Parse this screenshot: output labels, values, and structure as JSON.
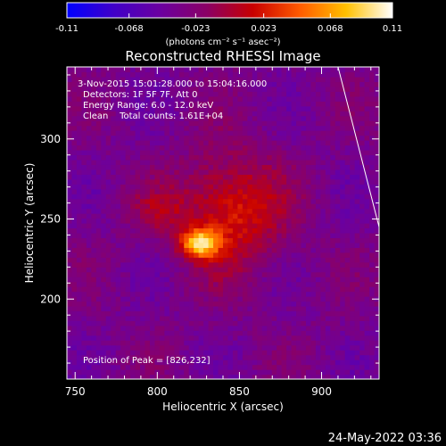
{
  "colorbar": {
    "ticks": [
      "-0.11",
      "-0.068",
      "-0.023",
      "0.023",
      "0.068",
      "0.11"
    ],
    "units": "(photons cm⁻² s⁻¹ asec⁻²)",
    "gradient": [
      "#0000ff",
      "#4000c8",
      "#6b00a0",
      "#8a0066",
      "#c80000",
      "#ff5a00",
      "#ffc000",
      "#ffffff"
    ]
  },
  "plot": {
    "title": "Reconstructed RHESSI Image",
    "info": [
      "3-Nov-2015 15:01:28.000 to 15:04:16.000",
      "Detectors: 1F 5F 7F, Att 0",
      "Energy Range: 6.0 - 12.0 keV",
      "Clean    Total counts: 1.61E+04"
    ],
    "peak_text": "Position of Peak = [826,232]",
    "xlabel": "Heliocentric X (arcsec)",
    "ylabel": "Heliocentric Y (arcsec)"
  },
  "timestamp": "24-May-2022 03:36",
  "chart_data": {
    "type": "heatmap",
    "title": "Reconstructed RHESSI Image",
    "xlabel": "Heliocentric X (arcsec)",
    "ylabel": "Heliocentric Y (arcsec)",
    "xlim": [
      745,
      935
    ],
    "ylim": [
      150,
      345
    ],
    "x_ticks": [
      750,
      800,
      850,
      900
    ],
    "y_ticks": [
      200,
      250,
      300
    ],
    "colorbar_range": [
      -0.11,
      0.11
    ],
    "colorbar_ticks": [
      -0.11,
      -0.068,
      -0.023,
      0.023,
      0.068,
      0.11
    ],
    "peak": {
      "x": 826,
      "y": 232,
      "value": 0.11
    },
    "sources": [
      {
        "x": 826,
        "y": 235,
        "sx": 8,
        "sy": 6,
        "value": 0.11
      },
      {
        "x": 845,
        "y": 255,
        "sx": 22,
        "sy": 25,
        "value": 0.06
      },
      {
        "x": 800,
        "y": 255,
        "sx": 12,
        "sy": 10,
        "value": 0.025
      }
    ],
    "limb_line": [
      [
        910,
        345
      ],
      [
        935,
        245
      ]
    ]
  }
}
